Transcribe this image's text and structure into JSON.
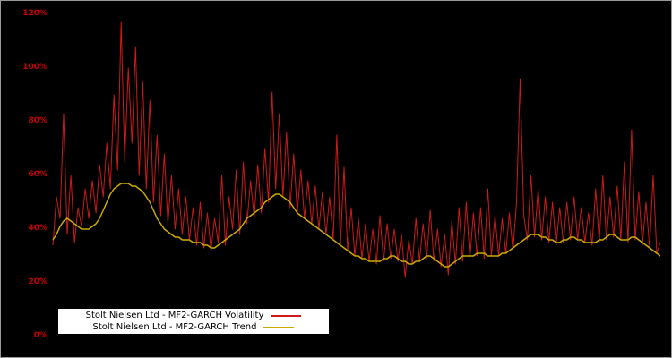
{
  "chart": {
    "background_color": "#000000",
    "y_axis": {
      "tick_color": "#cc0000",
      "ticks": [
        "120%",
        "100%",
        "80%",
        "60%",
        "40%",
        "20%",
        "0%"
      ]
    },
    "legend": {
      "items": [
        {
          "label": "Stolt Nielsen Ltd - MF2-GARCH Volatility",
          "color": "#cc1a1a"
        },
        {
          "label": "Stolt Nielsen Ltd - MF2-GARCH Trend",
          "color": "#ccaa00"
        }
      ]
    }
  },
  "chart_data": {
    "type": "line",
    "title": "",
    "xlabel": "",
    "ylabel": "",
    "ylim": [
      0,
      120
    ],
    "y_ticks_percent": [
      0,
      20,
      40,
      60,
      80,
      100,
      120
    ],
    "grid": false,
    "legend_position": "bottom-left",
    "series": [
      {
        "name": "Stolt Nielsen Ltd - MF2-GARCH Volatility",
        "color": "#cc1a1a",
        "stroke_width": 1,
        "values": [
          34,
          52,
          44,
          83,
          38,
          60,
          35,
          48,
          41,
          55,
          44,
          58,
          46,
          64,
          52,
          72,
          55,
          90,
          62,
          117,
          65,
          100,
          72,
          108,
          60,
          95,
          55,
          88,
          50,
          75,
          45,
          68,
          42,
          60,
          40,
          55,
          38,
          52,
          36,
          48,
          34,
          50,
          33,
          46,
          32,
          44,
          35,
          60,
          34,
          52,
          40,
          62,
          38,
          65,
          42,
          58,
          44,
          64,
          46,
          70,
          50,
          91,
          55,
          83,
          52,
          76,
          48,
          68,
          46,
          62,
          44,
          58,
          42,
          56,
          40,
          54,
          38,
          52,
          36,
          75,
          34,
          63,
          32,
          48,
          30,
          44,
          29,
          42,
          28,
          40,
          27,
          45,
          28,
          42,
          29,
          40,
          28,
          38,
          22,
          36,
          27,
          44,
          28,
          42,
          29,
          47,
          28,
          40,
          26,
          38,
          23,
          43,
          27,
          48,
          28,
          50,
          29,
          46,
          30,
          48,
          29,
          55,
          30,
          45,
          30,
          44,
          31,
          46,
          32,
          50,
          96,
          45,
          36,
          60,
          37,
          55,
          36,
          52,
          35,
          50,
          34,
          48,
          35,
          50,
          36,
          52,
          36,
          48,
          35,
          46,
          34,
          55,
          35,
          60,
          36,
          52,
          37,
          56,
          36,
          65,
          35,
          77,
          36,
          54,
          34,
          50,
          33,
          60,
          31,
          35
        ]
      },
      {
        "name": "Stolt Nielsen Ltd - MF2-GARCH Trend",
        "color": "#ccaa00",
        "stroke_width": 1.5,
        "values": [
          36,
          38,
          41,
          43,
          44,
          43,
          42,
          41,
          40,
          40,
          40,
          41,
          42,
          44,
          47,
          50,
          53,
          55,
          56,
          57,
          57,
          57,
          56,
          56,
          55,
          54,
          52,
          50,
          47,
          44,
          42,
          40,
          39,
          38,
          37,
          37,
          36,
          36,
          36,
          35,
          35,
          35,
          34,
          34,
          33,
          33,
          34,
          35,
          36,
          37,
          38,
          39,
          40,
          42,
          44,
          45,
          46,
          47,
          48,
          50,
          51,
          52,
          53,
          53,
          52,
          51,
          50,
          48,
          46,
          45,
          44,
          43,
          42,
          41,
          40,
          39,
          38,
          37,
          36,
          35,
          34,
          33,
          32,
          31,
          30,
          30,
          29,
          29,
          28,
          28,
          28,
          28,
          29,
          29,
          30,
          30,
          29,
          28,
          28,
          27,
          27,
          28,
          28,
          29,
          30,
          30,
          29,
          28,
          27,
          26,
          26,
          27,
          28,
          29,
          30,
          30,
          30,
          30,
          31,
          31,
          31,
          30,
          30,
          30,
          30,
          31,
          31,
          32,
          33,
          34,
          35,
          36,
          37,
          38,
          38,
          38,
          37,
          37,
          36,
          36,
          35,
          35,
          36,
          36,
          37,
          37,
          36,
          36,
          35,
          35,
          35,
          35,
          36,
          36,
          37,
          38,
          38,
          37,
          36,
          36,
          36,
          37,
          37,
          36,
          35,
          34,
          33,
          32,
          31,
          30
        ]
      }
    ]
  }
}
